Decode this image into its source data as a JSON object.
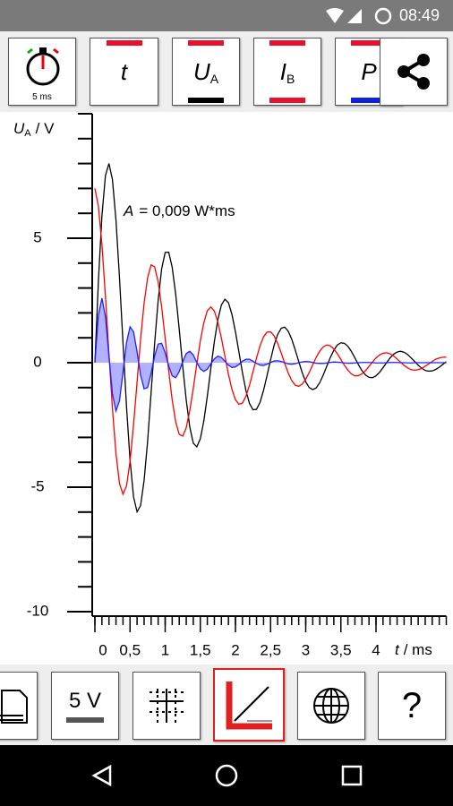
{
  "status": {
    "time": "08:49"
  },
  "toolbar": {
    "timer_label": "5 ms",
    "buttons": [
      {
        "symbol": "t"
      },
      {
        "symbol": "U",
        "sub": "A"
      },
      {
        "symbol": "I",
        "sub": "B"
      },
      {
        "symbol": "P"
      }
    ]
  },
  "bottom_toolbar": {
    "range_label": "5 V",
    "help_label": "?"
  },
  "chart_data": {
    "type": "line",
    "y_label": {
      "symbol": "U",
      "sub": "A",
      "unit": "/ V"
    },
    "x_label": {
      "symbol": "t",
      "unit": "/ ms"
    },
    "annotation": {
      "symbol": "A",
      "text": "=  0,009 W*ms"
    },
    "xlim": [
      0,
      5
    ],
    "ylim": [
      -10,
      10
    ],
    "xticks": [
      0,
      {
        "value": 0.5,
        "label": "0,5"
      },
      1,
      {
        "value": 1.5,
        "label": "1,5"
      },
      2,
      {
        "value": 2.5,
        "label": "2,5"
      },
      3,
      {
        "value": 3.5,
        "label": "3,5"
      },
      4
    ],
    "yticks": [
      -10,
      -5,
      0,
      5
    ],
    "x_minor_step": 0.1,
    "y_minor_step": 1,
    "x": [
      0,
      0.05,
      0.1,
      0.15,
      0.2,
      0.25,
      0.3,
      0.35,
      0.4,
      0.45,
      0.5,
      0.55,
      0.6,
      0.65,
      0.7,
      0.75,
      0.8,
      0.85,
      0.9,
      0.95,
      1,
      1.05,
      1.1,
      1.15,
      1.2,
      1.25,
      1.3,
      1.35,
      1.4,
      1.45,
      1.5,
      1.55,
      1.6,
      1.65,
      1.7,
      1.75,
      1.8,
      1.85,
      1.9,
      1.95,
      2,
      2.05,
      2.1,
      2.15,
      2.2,
      2.25,
      2.3,
      2.35,
      2.4,
      2.45,
      2.5,
      2.55,
      2.6,
      2.65,
      2.7,
      2.75,
      2.8,
      2.85,
      2.9,
      2.95,
      3,
      3.05,
      3.1,
      3.15,
      3.2,
      3.25,
      3.3,
      3.35,
      3.4,
      3.45,
      3.5,
      3.55,
      3.6,
      3.65,
      3.7,
      3.75,
      3.8,
      3.85,
      3.9,
      3.95,
      4,
      4.05,
      4.1,
      4.15,
      4.2,
      4.25,
      4.3,
      4.35,
      4.4,
      4.45,
      4.5,
      4.55,
      4.6,
      4.65,
      4.7,
      4.75,
      4.8,
      4.85,
      4.9,
      4.95,
      5
    ],
    "series": [
      {
        "color": "#000000",
        "values": [
          0,
          3.28,
          5.9,
          7.52,
          8,
          7.35,
          5.72,
          3.41,
          0.79,
          -1.77,
          -3.91,
          -5.39,
          -5.99,
          -5.74,
          -4.73,
          -3.16,
          -1.19,
          0.77,
          2.5,
          3.77,
          4.43,
          4.44,
          3.83,
          2.74,
          1.34,
          -0.15,
          -1.51,
          -2.58,
          -3.23,
          -3.38,
          -3.06,
          -2.34,
          -1.34,
          -0.22,
          0.85,
          1.73,
          2.32,
          2.55,
          2.41,
          1.94,
          1.24,
          0.42,
          -0.41,
          -1.13,
          -1.64,
          -1.89,
          -1.87,
          -1.59,
          -1.11,
          -0.51,
          0.12,
          0.7,
          1.13,
          1.38,
          1.43,
          1.27,
          0.95,
          0.52,
          0.05,
          -0.4,
          -0.77,
          -1,
          -1.08,
          -1.01,
          -0.8,
          -0.49,
          -0.14,
          0.21,
          0.5,
          0.71,
          0.8,
          0.78,
          0.66,
          0.45,
          0.19,
          -0.08,
          -0.32,
          -0.49,
          -0.59,
          -0.6,
          -0.53,
          -0.39,
          -0.2,
          0,
          0.19,
          0.34,
          0.43,
          0.46,
          0.42,
          0.33,
          0.19,
          0.05,
          -0.1,
          -0.22,
          -0.31,
          -0.34,
          -0.33,
          -0.27,
          -0.18,
          -0.07,
          0.04
        ]
      },
      {
        "color": "#ff0000",
        "values": [
          7,
          6.28,
          4.75,
          2.67,
          0.35,
          -1.86,
          -3.66,
          -4.85,
          -5.28,
          -4.95,
          -3.97,
          -2.48,
          -0.79,
          0.94,
          2.39,
          3.41,
          3.93,
          3.85,
          3.25,
          2.24,
          0.98,
          -0.32,
          -1.5,
          -2.38,
          -2.88,
          -2.95,
          -2.61,
          -1.93,
          -1.03,
          -0.05,
          0.87,
          1.61,
          2.09,
          2.24,
          2.07,
          1.63,
          0.99,
          0.26,
          -0.46,
          -1.07,
          -1.49,
          -1.67,
          -1.62,
          -1.34,
          -0.9,
          -0.36,
          0.19,
          0.68,
          1.04,
          1.23,
          1.24,
          1.08,
          0.78,
          0.4,
          -0.02,
          -0.41,
          -0.71,
          -0.9,
          -0.95,
          -0.86,
          -0.66,
          -0.39,
          -0.08,
          0.22,
          0.47,
          0.64,
          0.71,
          0.68,
          0.55,
          0.36,
          0.13,
          -0.1,
          -0.3,
          -0.45,
          -0.53,
          -0.52,
          -0.45,
          -0.32,
          -0.15,
          0.03,
          0.19,
          0.31,
          0.38,
          0.4,
          0.36,
          0.27,
          0.15,
          0.02,
          -0.11,
          -0.21,
          -0.28,
          -0.3,
          -0.28,
          -0.23,
          -0.14,
          -0.05,
          0.05,
          0.14,
          0.19,
          0.22,
          0.22
        ]
      },
      {
        "color": "#2020ff",
        "fill": true,
        "values": [
          0,
          1.91,
          2.59,
          1.86,
          0.26,
          -1.27,
          -1.94,
          -1.53,
          -0.39,
          0.81,
          1.44,
          1.24,
          0.44,
          -0.5,
          -1.05,
          -1,
          -0.43,
          0.27,
          0.75,
          0.78,
          0.4,
          -0.13,
          -0.53,
          -0.6,
          -0.36,
          0.04,
          0.37,
          0.46,
          0.31,
          0.01,
          -0.25,
          -0.35,
          -0.26,
          -0.05,
          0.16,
          0.26,
          0.21,
          0.06,
          -0.1,
          -0.19,
          -0.17,
          -0.07,
          0.06,
          0.14,
          0.14,
          0.06,
          -0.03,
          -0.1,
          -0.11,
          -0.06,
          0.01,
          0.07,
          0.08,
          0.05,
          0,
          -0.05,
          -0.06,
          -0.04,
          0,
          0.03,
          0.05,
          0.04,
          0.01,
          -0.02,
          -0.03,
          -0.03,
          -0.01,
          0.01,
          0.03,
          0.02,
          0.01,
          -0.01,
          -0.02,
          -0.02,
          -0.01,
          0,
          0.01,
          0.01,
          0.01,
          0,
          -0.01,
          -0.01,
          -0.01,
          0,
          0.01,
          0.01,
          0.01,
          0,
          0,
          -0.01,
          -0.01,
          0,
          0,
          0,
          0,
          0,
          0,
          0,
          0,
          0,
          0
        ]
      }
    ]
  }
}
